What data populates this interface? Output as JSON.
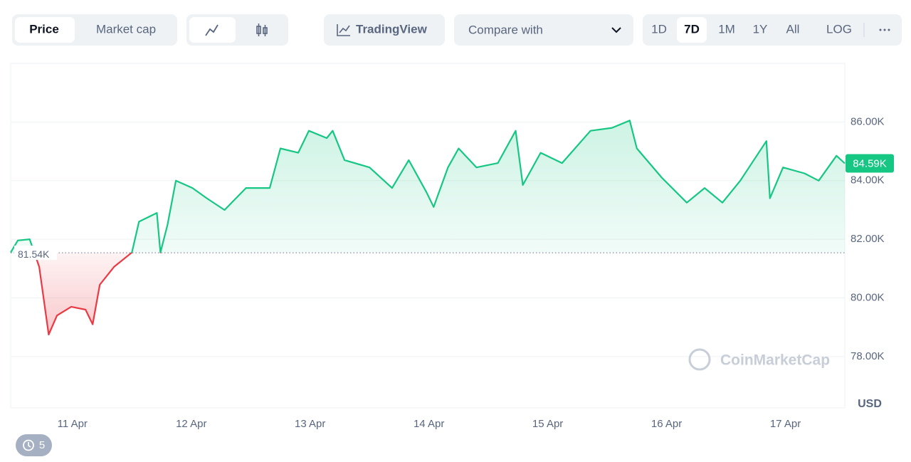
{
  "toolbar": {
    "tabs": [
      "Price",
      "Market cap"
    ],
    "tradingview": "TradingView",
    "compare": "Compare with",
    "ranges": [
      "1D",
      "7D",
      "1M",
      "1Y",
      "All"
    ],
    "log": "LOG"
  },
  "history_count": 5,
  "chart_data": {
    "type": "line",
    "watermark": "CoinMarketCap",
    "ylabel": "USD",
    "x": [
      10.48,
      10.54,
      10.64,
      10.72,
      10.8,
      10.87,
      10.99,
      11.11,
      11.17,
      11.23,
      11.35,
      11.5,
      11.56,
      11.71,
      11.74,
      11.8,
      11.87,
      12.01,
      12.13,
      12.28,
      12.46,
      12.66,
      12.75,
      12.9,
      12.99,
      13.14,
      13.19,
      13.29,
      13.5,
      13.69,
      13.83,
      13.98,
      14.04,
      14.16,
      14.25,
      14.4,
      14.58,
      14.73,
      14.79,
      14.94,
      15.12,
      15.36,
      15.54,
      15.69,
      15.75,
      15.96,
      16.17,
      16.32,
      16.47,
      16.62,
      16.84,
      16.87,
      16.98,
      17.16,
      17.28,
      17.43,
      17.5
    ],
    "values": [
      81550,
      81960,
      82000,
      81060,
      78750,
      79400,
      79700,
      79600,
      79100,
      80450,
      81060,
      81550,
      82600,
      82900,
      81550,
      82500,
      84000,
      83750,
      83400,
      83000,
      83750,
      83750,
      85100,
      84950,
      85700,
      85450,
      85700,
      84700,
      84450,
      83750,
      84700,
      83600,
      83100,
      84450,
      85100,
      84450,
      84600,
      85700,
      83850,
      84950,
      84600,
      85700,
      85800,
      86050,
      85100,
      84100,
      83250,
      83750,
      83250,
      84000,
      85350,
      83400,
      84450,
      84250,
      84000,
      84850,
      84590
    ],
    "color_up": "#16c784",
    "color_down": "#ea3943",
    "baseline": 81540,
    "baseline_label": "81.54K",
    "last": 84590,
    "last_label": "84.59K",
    "xlim": [
      10.48,
      17.5
    ],
    "xticks": [
      {
        "value": 11,
        "label": "11 Apr"
      },
      {
        "value": 12,
        "label": "12 Apr"
      },
      {
        "value": 13,
        "label": "13 Apr"
      },
      {
        "value": 14,
        "label": "14 Apr"
      },
      {
        "value": 15,
        "label": "15 Apr"
      },
      {
        "value": 16,
        "label": "16 Apr"
      },
      {
        "value": 17,
        "label": "17 Apr"
      }
    ],
    "ylim": [
      76250,
      88000
    ],
    "yticks": [
      {
        "value": 78000,
        "label": "78.00K"
      },
      {
        "value": 80000,
        "label": "80.00K"
      },
      {
        "value": 82000,
        "label": "82.00K"
      },
      {
        "value": 84000,
        "label": "84.00K"
      },
      {
        "value": 86000,
        "label": "86.00K"
      }
    ],
    "grid": true
  }
}
